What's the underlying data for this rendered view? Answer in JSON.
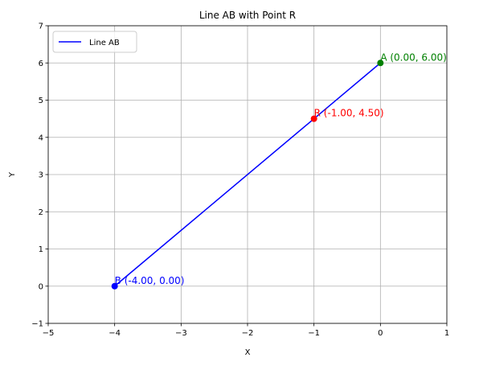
{
  "chart_data": {
    "type": "line",
    "title": "Line AB with Point R",
    "xlabel": "X",
    "ylabel": "Y",
    "xlim": [
      -5,
      1
    ],
    "ylim": [
      -1,
      7
    ],
    "xticks": [
      -5,
      -4,
      -3,
      -2,
      -1,
      0,
      1
    ],
    "yticks": [
      -1,
      0,
      1,
      2,
      3,
      4,
      5,
      6,
      7
    ],
    "xtick_labels": [
      "−5",
      "−4",
      "−3",
      "−2",
      "−1",
      "0",
      "1"
    ],
    "ytick_labels": [
      "−1",
      "0",
      "1",
      "2",
      "3",
      "4",
      "5",
      "6",
      "7"
    ],
    "grid": true,
    "legend_position": "upper-left",
    "series": [
      {
        "name": "Line AB",
        "color": "#0000ff",
        "x": [
          -4,
          0
        ],
        "y": [
          0,
          6
        ]
      }
    ],
    "points": [
      {
        "label": "A (0.00, 6.00)",
        "x": 0,
        "y": 6,
        "color": "#008000"
      },
      {
        "label": "B (-4.00, 0.00)",
        "x": -4,
        "y": 0,
        "color": "#0000ff"
      },
      {
        "label": "R (-1.00, 4.50)",
        "x": -1,
        "y": 4.5,
        "color": "#ff0000"
      }
    ]
  }
}
